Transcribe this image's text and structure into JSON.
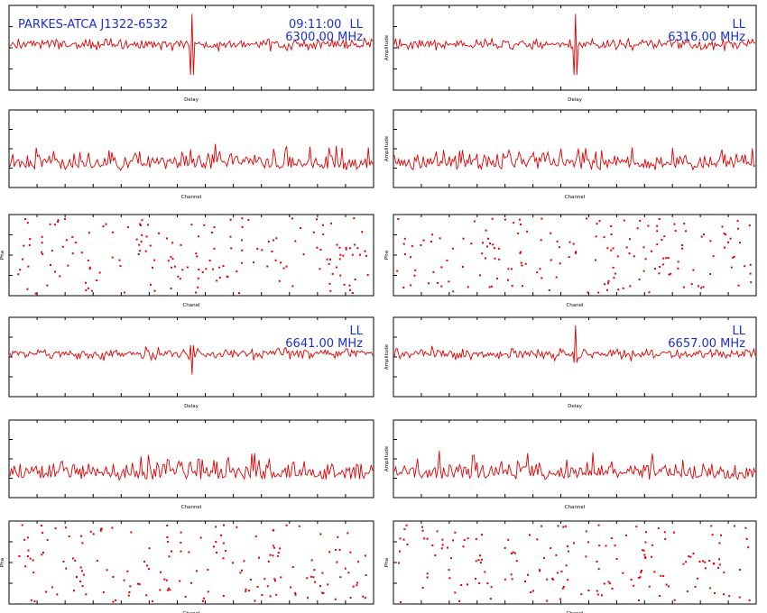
{
  "header": {
    "source": "PARKES-ATCA J1322-6532",
    "time": "09:11:00"
  },
  "bands": [
    {
      "id": "b1",
      "pol": "LL",
      "freq": "6300.00 MHz"
    },
    {
      "id": "b2",
      "pol": "LL",
      "freq": "6316.00 MHz"
    },
    {
      "id": "b3",
      "pol": "LL",
      "freq": "6641.00 MHz"
    },
    {
      "id": "b4",
      "pol": "LL",
      "freq": "6657.00 MHz"
    }
  ],
  "colors": {
    "trace": "#e00000",
    "annotation": "#1a2fd6",
    "axis": "#000000"
  },
  "chart_data": [
    {
      "id": "b1-delay",
      "band": "b1",
      "type": "line",
      "xlabel": "Delay",
      "ylabel": "",
      "peak": "center",
      "peak_sign": "both"
    },
    {
      "id": "b2-delay",
      "band": "b2",
      "type": "line",
      "xlabel": "Delay",
      "ylabel": "Amplitude",
      "peak": "center",
      "peak_sign": "both"
    },
    {
      "id": "b1-channel",
      "band": "b1",
      "type": "line",
      "xlabel": "Channel",
      "ylabel": ""
    },
    {
      "id": "b2-channel",
      "band": "b2",
      "type": "line",
      "xlabel": "Channel",
      "ylabel": "Amplitude"
    },
    {
      "id": "b1-phase",
      "band": "b1",
      "type": "scatter",
      "xlabel": "Chanel",
      "ylabel": "Pha"
    },
    {
      "id": "b2-phase",
      "band": "b2",
      "type": "scatter",
      "xlabel": "Chanel",
      "ylabel": "Pha"
    },
    {
      "id": "b3-delay",
      "band": "b3",
      "type": "line",
      "xlabel": "Delay",
      "ylabel": "",
      "peak": "center",
      "peak_sign": "down"
    },
    {
      "id": "b4-delay",
      "band": "b4",
      "type": "line",
      "xlabel": "Delay",
      "ylabel": "Amplitude",
      "peak": "center",
      "peak_sign": "up"
    },
    {
      "id": "b3-channel",
      "band": "b3",
      "type": "line",
      "xlabel": "Channel",
      "ylabel": ""
    },
    {
      "id": "b4-channel",
      "band": "b4",
      "type": "line",
      "xlabel": "Channel",
      "ylabel": "Amplitude"
    },
    {
      "id": "b3-phase",
      "band": "b3",
      "type": "scatter",
      "xlabel": "Chanel",
      "ylabel": "Pha"
    },
    {
      "id": "b4-phase",
      "band": "b4",
      "type": "scatter",
      "xlabel": "Chanel",
      "ylabel": "Pha"
    }
  ]
}
